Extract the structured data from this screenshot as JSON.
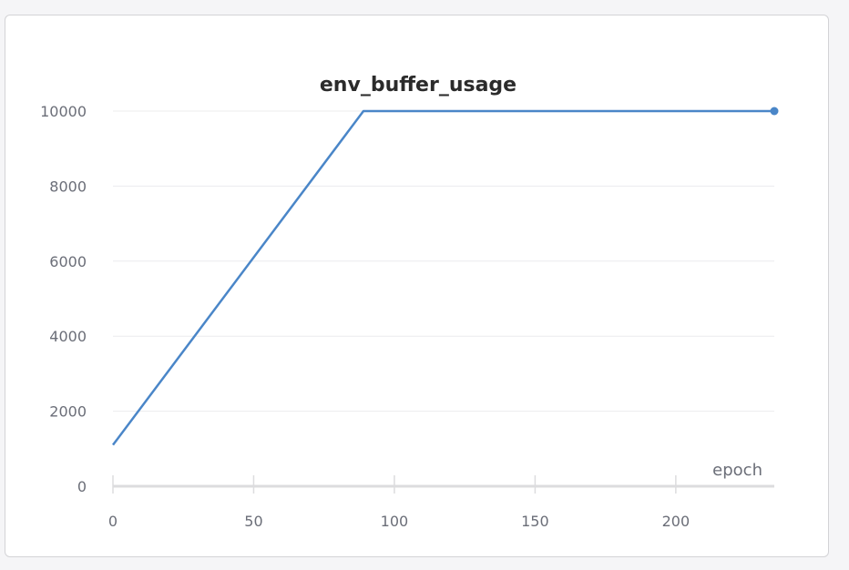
{
  "chart_data": {
    "type": "line",
    "title": "env_buffer_usage",
    "xlabel": "epoch",
    "ylabel": "",
    "xlim": [
      0,
      235
    ],
    "ylim": [
      0,
      10000
    ],
    "x_ticks": [
      0,
      50,
      100,
      150,
      200
    ],
    "y_ticks": [
      0,
      2000,
      4000,
      6000,
      8000,
      10000
    ],
    "grid": true,
    "series": [
      {
        "color": "#4a86c8",
        "x": [
          0,
          89,
          235
        ],
        "y": [
          1100,
          10000,
          10000
        ]
      }
    ]
  }
}
